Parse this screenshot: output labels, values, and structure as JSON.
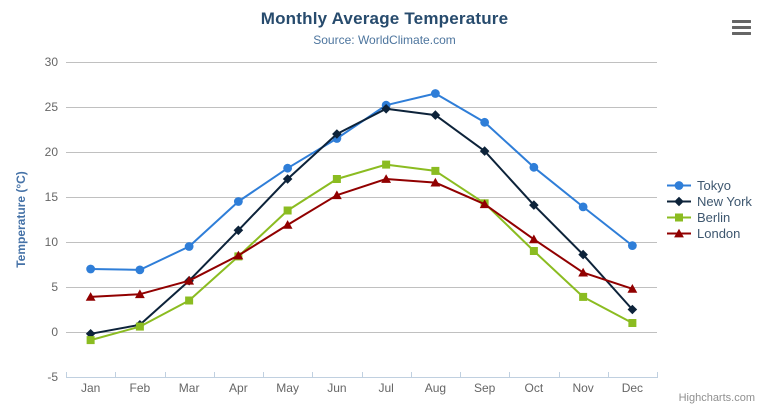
{
  "header": {
    "credit": "Highcharts.com"
  },
  "chart_data": {
    "type": "line",
    "title": "Monthly Average Temperature",
    "subtitle": "Source: WorldClimate.com",
    "xlabel": "",
    "ylabel": "Temperature (°C)",
    "categories": [
      "Jan",
      "Feb",
      "Mar",
      "Apr",
      "May",
      "Jun",
      "Jul",
      "Aug",
      "Sep",
      "Oct",
      "Nov",
      "Dec"
    ],
    "series": [
      {
        "name": "Tokyo",
        "marker": "circle",
        "color": "#2f7ed8",
        "values": [
          7.0,
          6.9,
          9.5,
          14.5,
          18.2,
          21.5,
          25.2,
          26.5,
          23.3,
          18.3,
          13.9,
          9.6
        ]
      },
      {
        "name": "New York",
        "marker": "diamond",
        "color": "#0d233a",
        "values": [
          -0.2,
          0.8,
          5.7,
          11.3,
          17.0,
          22.0,
          24.8,
          24.1,
          20.1,
          14.1,
          8.6,
          2.5
        ]
      },
      {
        "name": "Berlin",
        "marker": "square",
        "color": "#8bbc21",
        "values": [
          -0.9,
          0.6,
          3.5,
          8.4,
          13.5,
          17.0,
          18.6,
          17.9,
          14.3,
          9.0,
          3.9,
          1.0
        ]
      },
      {
        "name": "London",
        "marker": "triangle",
        "color": "#910000",
        "values": [
          3.9,
          4.2,
          5.7,
          8.5,
          11.9,
          15.2,
          17.0,
          16.6,
          14.2,
          10.3,
          6.6,
          4.8
        ]
      }
    ],
    "ylim": [
      -5,
      30
    ],
    "ytick_step": 5,
    "grid": true,
    "legend_position": "right",
    "colors": {
      "grid": "#c0c0c0",
      "axis_line": "#c0d0e0",
      "axis_labels": "#666666",
      "axis_title": "#4572a7",
      "title": "#274b6d",
      "subtitle": "#4d759e",
      "legend_text": "#3e576f",
      "credit": "#909090",
      "menu_icon": "#666666"
    }
  }
}
